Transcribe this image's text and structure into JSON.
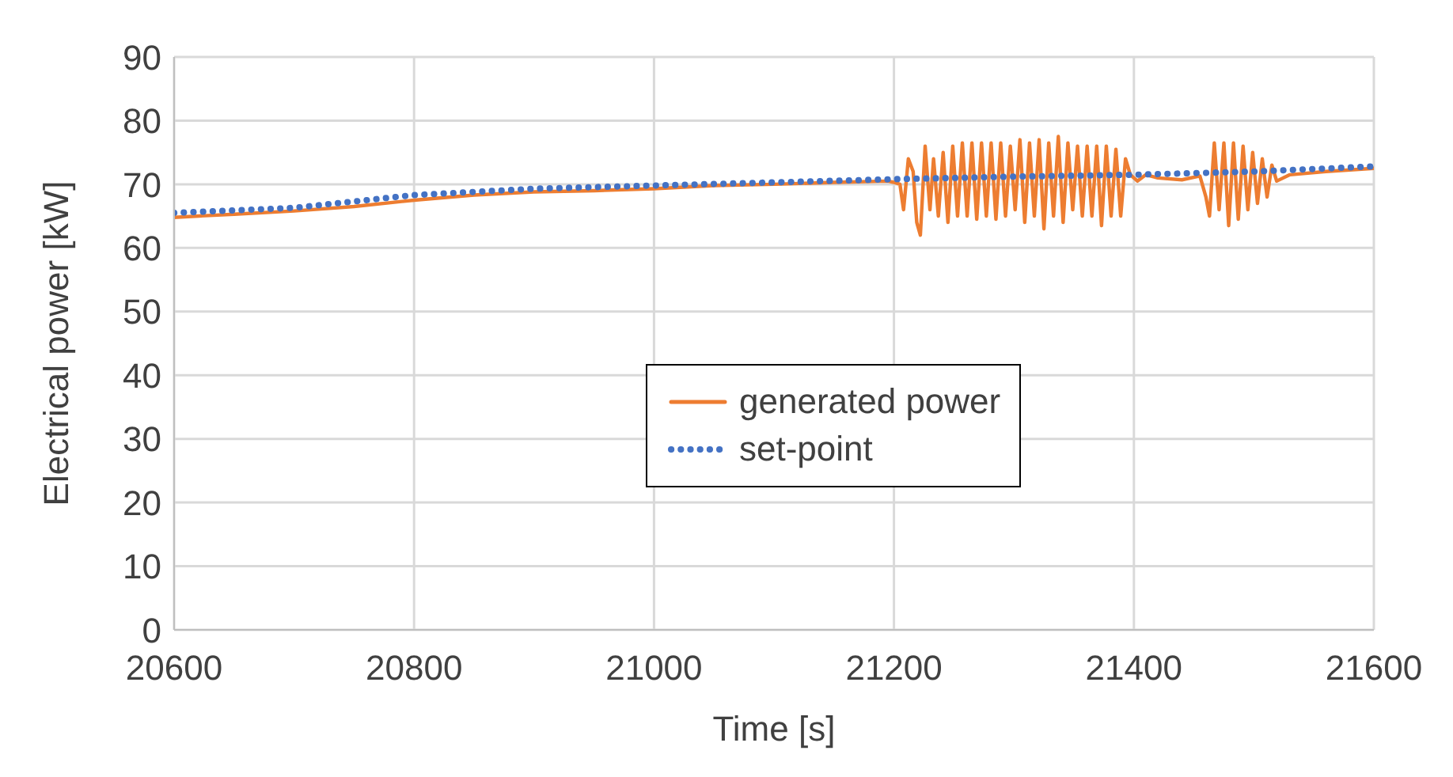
{
  "chart_data": {
    "type": "line",
    "xlabel": "Time [s]",
    "ylabel": "Electrical power [kW]",
    "xlim": [
      20600,
      21600
    ],
    "xticks": [
      20600,
      20800,
      21000,
      21200,
      21400,
      21600
    ],
    "ylim": [
      0,
      90
    ],
    "yticks": [
      0,
      10,
      20,
      30,
      40,
      50,
      60,
      70,
      80,
      90
    ],
    "grid": true,
    "legend": "right",
    "marker": "none",
    "series": [
      {
        "name": "generated power",
        "color": "#ed7d31",
        "line_style": "solid",
        "x": [
          20600,
          20650,
          20700,
          20750,
          20800,
          20850,
          20900,
          20950,
          21000,
          21050,
          21100,
          21150,
          21195,
          21200,
          21205,
          21208,
          21212,
          21216,
          21219,
          21222,
          21226,
          21230,
          21233,
          21237,
          21241,
          21245,
          21249,
          21253,
          21257,
          21261,
          21265,
          21269,
          21273,
          21277,
          21281,
          21285,
          21289,
          21293,
          21297,
          21301,
          21305,
          21309,
          21313,
          21317,
          21321,
          21325,
          21329,
          21333,
          21337,
          21341,
          21345,
          21349,
          21353,
          21357,
          21361,
          21365,
          21369,
          21373,
          21377,
          21381,
          21385,
          21389,
          21393,
          21397,
          21403,
          21410,
          21420,
          21440,
          21455,
          21460,
          21463,
          21467,
          21471,
          21475,
          21479,
          21483,
          21487,
          21491,
          21495,
          21499,
          21503,
          21507,
          21511,
          21515,
          21519,
          21530,
          21560,
          21600
        ],
        "values": [
          64.8,
          65.3,
          65.8,
          66.5,
          67.5,
          68.3,
          68.8,
          69,
          69.3,
          69.8,
          70,
          70.3,
          70.5,
          70.3,
          70,
          66,
          74,
          72,
          64,
          62,
          76,
          66,
          74,
          65,
          75,
          64,
          76,
          65,
          76.5,
          65,
          76.5,
          64.5,
          76.5,
          65,
          76.5,
          64.5,
          76.5,
          65,
          76,
          66,
          77,
          64,
          76.5,
          65,
          77,
          63,
          76.5,
          65,
          77.5,
          64,
          76.5,
          66,
          76,
          65,
          76,
          65,
          76,
          63.5,
          76,
          65,
          75.5,
          65,
          74,
          71.5,
          70.5,
          71.5,
          71,
          70.7,
          71.3,
          68,
          65,
          76.5,
          66,
          76.5,
          63.5,
          76.5,
          64.5,
          76,
          66,
          75,
          67,
          74,
          68,
          73,
          70.5,
          71.5,
          72,
          72.5
        ]
      },
      {
        "name": "set-point",
        "color": "#4472c4",
        "line_style": "dotted",
        "x": [
          20600,
          20700,
          20800,
          20900,
          21000,
          21100,
          21200,
          21300,
          21400,
          21500,
          21600
        ],
        "values": [
          65.5,
          66.3,
          68.3,
          69.3,
          69.8,
          70.3,
          70.8,
          71.2,
          71.5,
          72,
          72.8
        ]
      }
    ]
  }
}
